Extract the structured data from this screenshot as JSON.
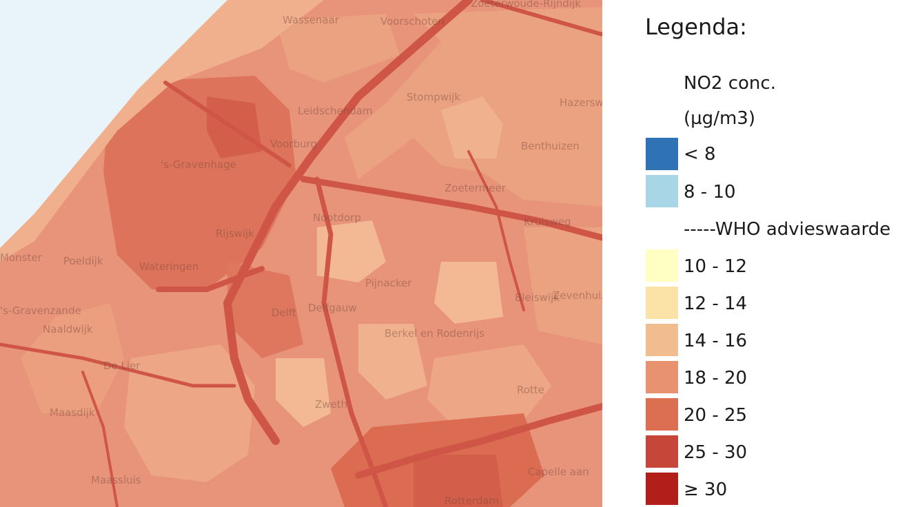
{
  "legend": {
    "title": "Legenda:",
    "header_line1": "NO2 conc.",
    "header_line2": "(µg/m3)",
    "classes": [
      {
        "label": "< 8",
        "color": "#2f72b5"
      },
      {
        "label": "8 - 10",
        "color": "#a8d6e6"
      },
      {
        "label": "10 - 12",
        "color": "#ffffc4"
      },
      {
        "label": "12 - 14",
        "color": "#fbe3a8"
      },
      {
        "label": "14 - 16",
        "color": "#f2bd8e"
      },
      {
        "label": "18 - 20",
        "color": "#e8926f"
      },
      {
        "label": "20 - 25",
        "color": "#dc6e52"
      },
      {
        "label": "25 - 30",
        "color": "#c7463a"
      },
      {
        "label": "≥ 30",
        "color": "#b21f1b"
      }
    ],
    "who_line": "-----WHO advieswaarde"
  },
  "map": {
    "sea_color": "#e9f3fa",
    "places": [
      "Zoeterwoude-Rijndijk",
      "Wassenaar",
      "Voorschoten",
      "Stompwijk",
      "Hazerswoude",
      "Leidschendam",
      "Voorburg",
      "Benthuizen",
      "'s-Gravenhage",
      "Zoetermeer",
      "Nootdorp",
      "Kruisweg",
      "Rijswijk",
      "Monster",
      "Poeldijk",
      "Wateringen",
      "Pijnacker",
      "Bleiswijk",
      "Zevenhuizen",
      "Delfgauw",
      "Delft",
      "'s-Gravenzande",
      "Naaldwijk",
      "Berkel en Rodenrijs",
      "De Lier",
      "Rotte",
      "Zweth",
      "Maasdijk",
      "Capelle aan",
      "Maassluis",
      "Rotterdam"
    ]
  }
}
